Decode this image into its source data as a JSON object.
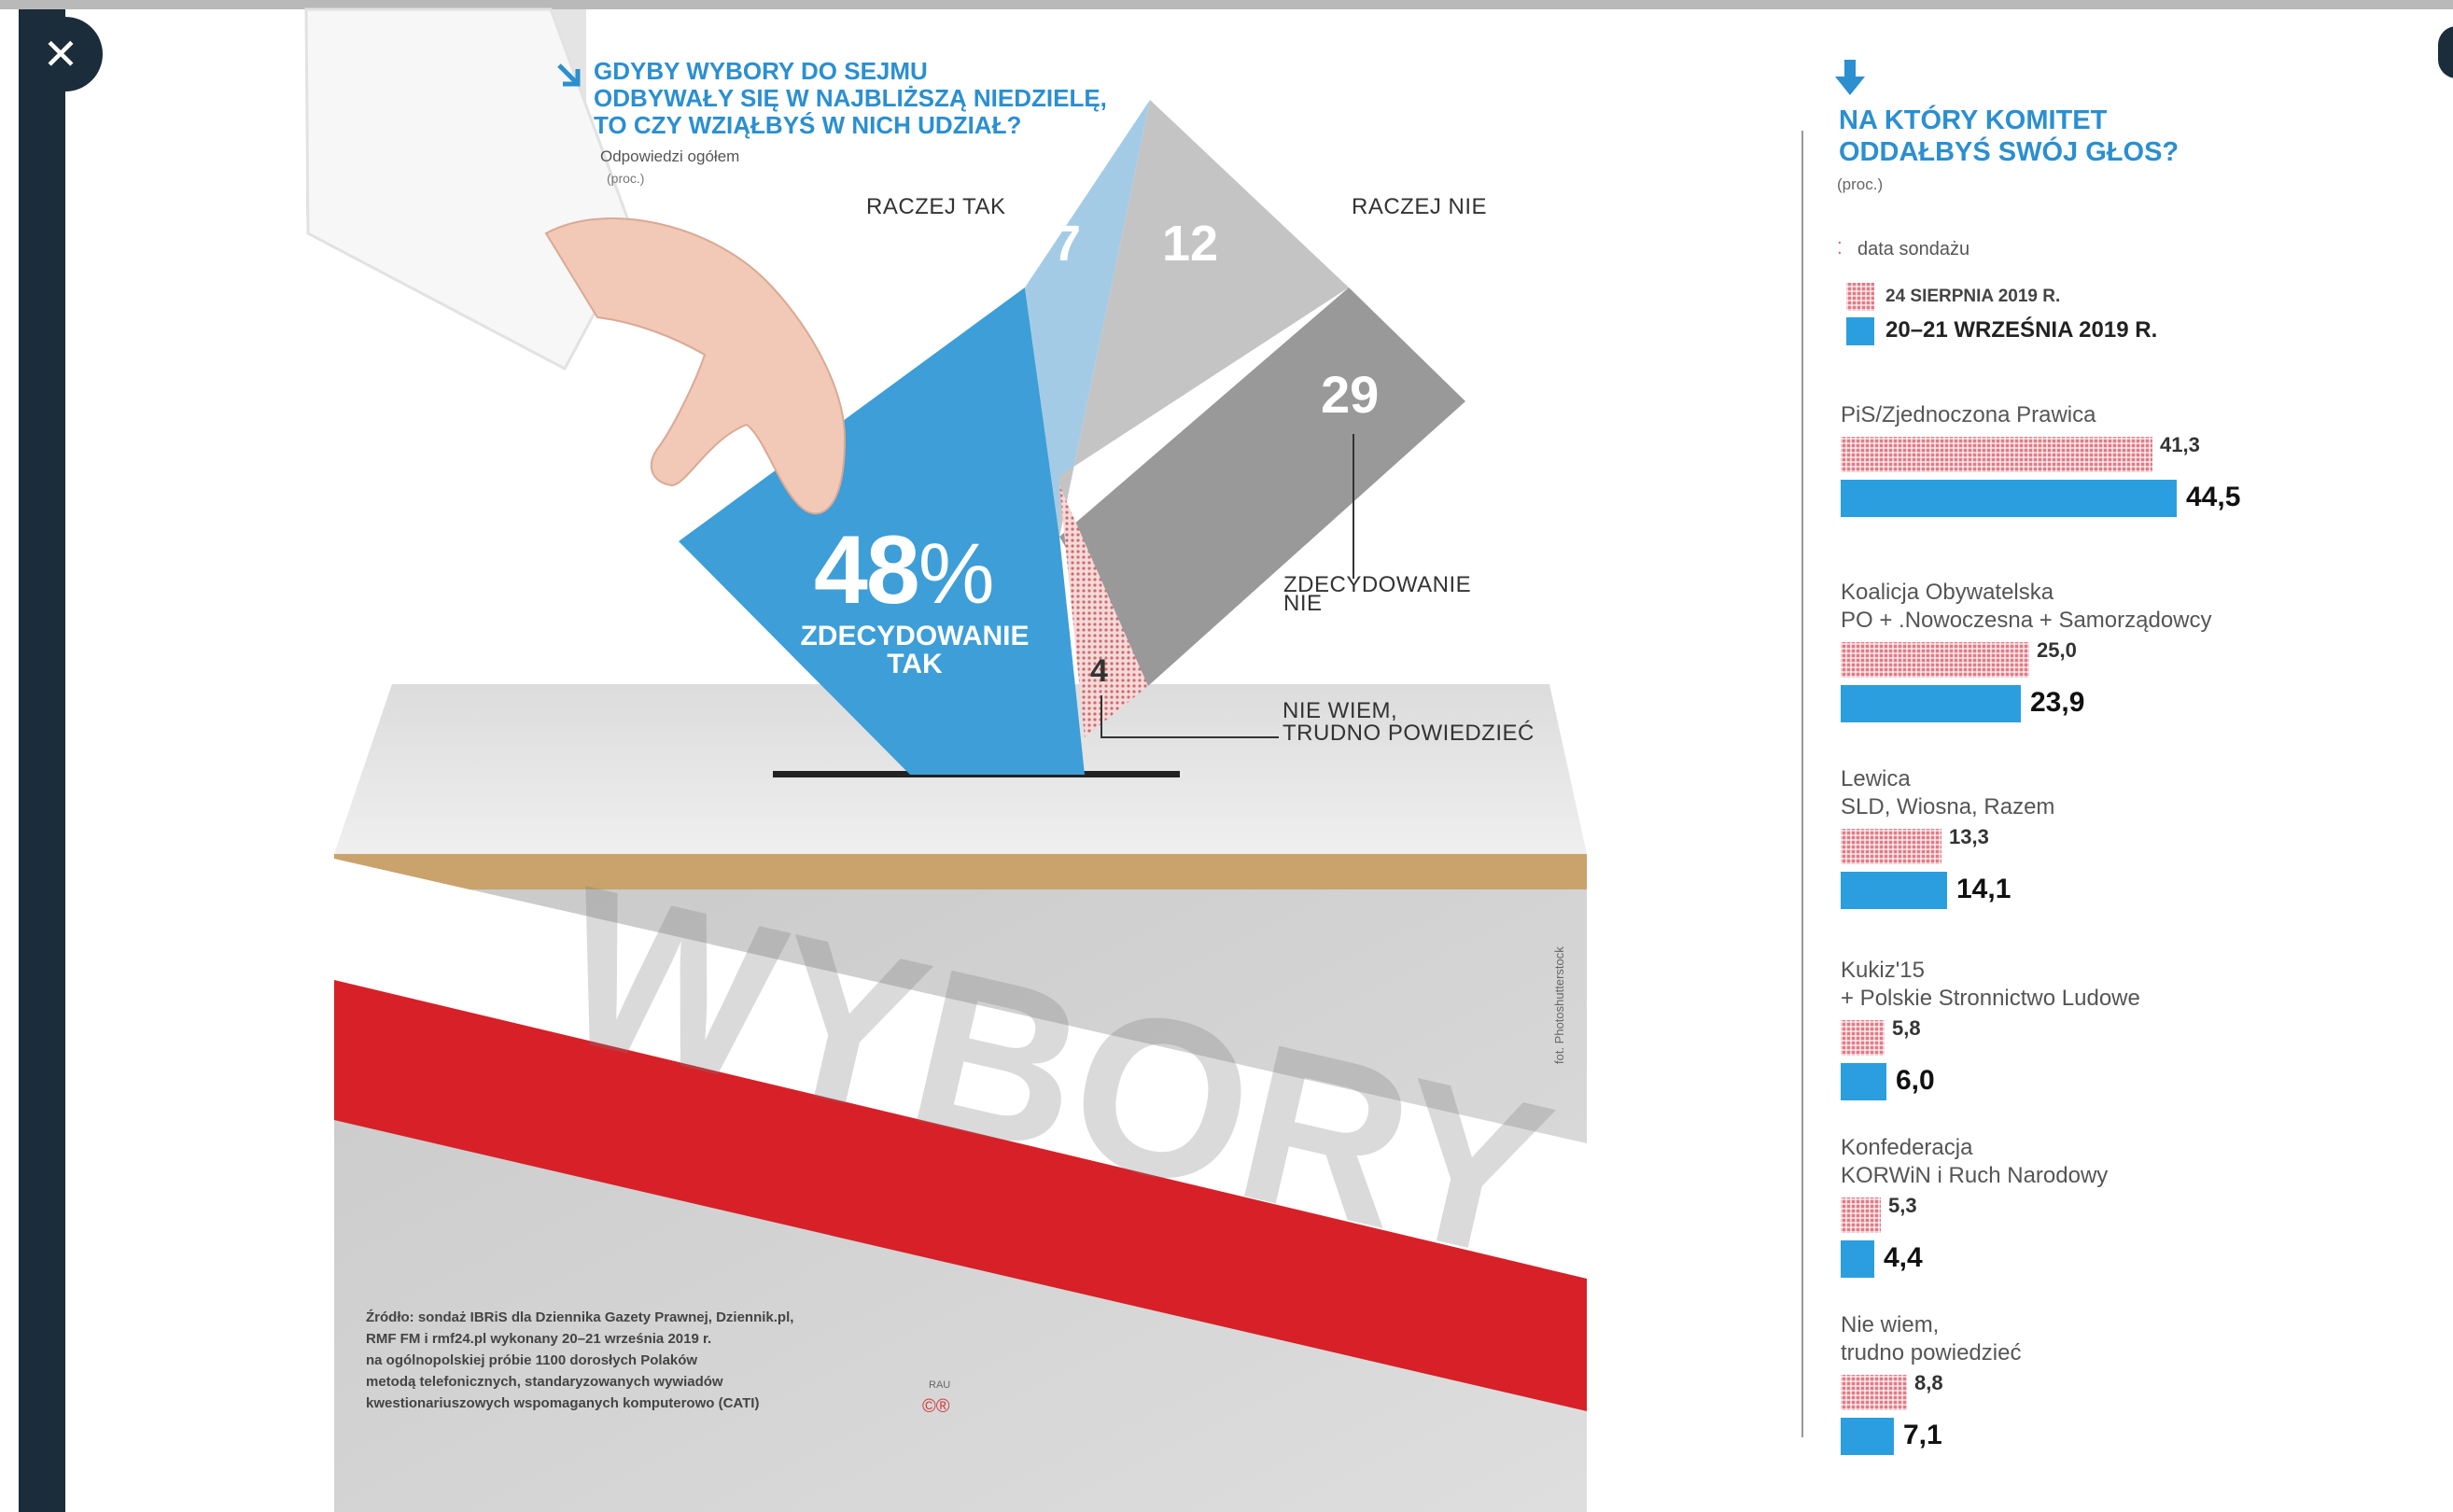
{
  "viewer": {
    "close_icon": "close-icon",
    "close_symbol": "✕"
  },
  "turnout": {
    "question": [
      "GDYBY WYBORY DO SEJMU",
      "ODBYWAŁY SIĘ W NAJBLIŻSZĄ NIEDZIELĘ,",
      "TO CZY WZIĄŁBYŚ W NICH UDZIAŁ?"
    ],
    "subtitle": "Odpowiedzi ogółem",
    "unit": "(proc.)",
    "labels": {
      "raczej_tak": "RACZEJ TAK",
      "raczej_nie": "RACZEJ NIE",
      "zdecydowanie_tak": [
        "ZDECYDOWANIE",
        "TAK"
      ],
      "zdecydowanie_nie": [
        "ZDECYDOWANIE",
        "NIE"
      ],
      "nie_wiem": [
        "NIE WIEM,",
        "TRUDNO POWIEDZIEĆ"
      ]
    },
    "big_value": "48",
    "big_pct": "%",
    "colors": {
      "zdec_tak": "#3d9ed8",
      "raczej_tak": "#a3cbe6",
      "raczej_nie": "#c4c4c4",
      "zdec_nie": "#999999",
      "nie_wiem": "#e2a5a5"
    }
  },
  "chart_data": [
    {
      "type": "pie",
      "title": "GDYBY WYBORY DO SEJMU ODBYWAŁY SIĘ W NAJBLIŻSZĄ NIEDZIELĘ, TO CZY WZIĄŁBYŚ W NICH UDZIAŁ?",
      "categories": [
        "Zdecydowanie tak",
        "Raczej tak",
        "Raczej nie",
        "Zdecydowanie nie",
        "Nie wiem, trudno powiedzieć"
      ],
      "values": [
        48,
        7,
        12,
        29,
        4
      ],
      "display_values": [
        "48",
        "7",
        "12",
        "29",
        "4"
      ]
    },
    {
      "type": "bar",
      "orientation": "horizontal",
      "title": "NA KTÓRY KOMITET ODDAŁBYŚ SWÓJ GŁOS?",
      "unit": "(proc.)",
      "legend_title": "data sondażu",
      "series_names": [
        "24 SIERPNIA 2019 R.",
        "20–21 WRZEŚNIA 2019 R."
      ],
      "colors": [
        "#e07b86",
        "#2b9ee0"
      ],
      "max_value": 44.5,
      "categories": [
        {
          "lines": [
            "PiS/Zjednoczona Prawica"
          ],
          "old": 41.3,
          "new": 44.5,
          "old_label": "41,3",
          "new_label": "44,5"
        },
        {
          "lines": [
            "Koalicja Obywatelska",
            "PO + .Nowoczesna + Samorządowcy"
          ],
          "old": 25.0,
          "new": 23.9,
          "old_label": "25,0",
          "new_label": "23,9"
        },
        {
          "lines": [
            "Lewica",
            "SLD, Wiosna, Razem"
          ],
          "old": 13.3,
          "new": 14.1,
          "old_label": "13,3",
          "new_label": "14,1"
        },
        {
          "lines": [
            "Kukiz'15",
            "+ Polskie Stronnictwo Ludowe"
          ],
          "old": 5.8,
          "new": 6.0,
          "old_label": "5,8",
          "new_label": "6,0"
        },
        {
          "lines": [
            "Konfederacja",
            "KORWiN i Ruch Narodowy"
          ],
          "old": 5.3,
          "new": 4.4,
          "old_label": "5,3",
          "new_label": "4,4"
        },
        {
          "lines": [
            "Nie wiem,",
            "trudno powiedzieć"
          ],
          "old": 8.8,
          "new": 7.1,
          "old_label": "8,8",
          "new_label": "7,1"
        }
      ]
    }
  ],
  "box": {
    "word": "WYBORY",
    "credit": "fot. Photoshutterstock"
  },
  "source": {
    "lines": [
      "Źródło: sondaż IBRiS dla Dziennika Gazety Prawnej, Dziennik.pl,",
      "RMF FM i rmf24.pl wykonany 20–21 września 2019 r.",
      "na ogólnopolskiej próbie 1100 dorosłych Polaków",
      "metodą telefonicznych, standaryzowanych wywiadów",
      "kwestionariuszowych wspomaganych komputerowo (CATI)"
    ],
    "author": "RAU"
  }
}
